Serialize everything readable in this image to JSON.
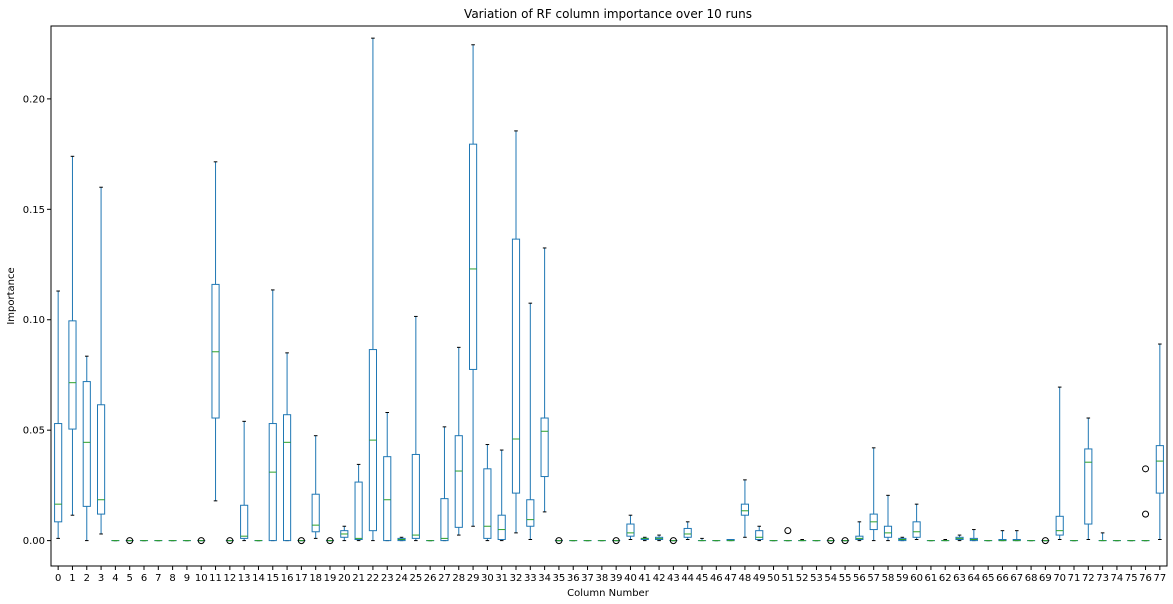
{
  "chart_data": {
    "type": "box",
    "title": "Variation of RF column importance over 10 runs",
    "xlabel": "Column Number",
    "ylabel": "Importance",
    "ylim": [
      -0.0115,
      0.233
    ],
    "yticks": [
      0.0,
      0.05,
      0.1,
      0.15,
      0.2
    ],
    "ytick_labels": [
      "0.00",
      "0.05",
      "0.10",
      "0.15",
      "0.20"
    ],
    "grid": false,
    "colors": {
      "box": "#1f77b4",
      "median": "#2ca02c",
      "outlier": "#000000"
    },
    "categories": [
      "0",
      "1",
      "2",
      "3",
      "4",
      "5",
      "6",
      "7",
      "8",
      "9",
      "10",
      "11",
      "12",
      "13",
      "14",
      "15",
      "16",
      "17",
      "18",
      "19",
      "20",
      "21",
      "22",
      "23",
      "24",
      "25",
      "26",
      "27",
      "28",
      "29",
      "30",
      "31",
      "32",
      "33",
      "34",
      "35",
      "36",
      "37",
      "38",
      "39",
      "40",
      "41",
      "42",
      "43",
      "44",
      "45",
      "46",
      "47",
      "48",
      "49",
      "50",
      "51",
      "52",
      "53",
      "54",
      "55",
      "56",
      "57",
      "58",
      "59",
      "60",
      "61",
      "62",
      "63",
      "64",
      "65",
      "66",
      "67",
      "68",
      "69",
      "70",
      "71",
      "72",
      "73",
      "74",
      "75",
      "76",
      "77"
    ],
    "boxes": [
      {
        "min": 0.001,
        "q1": 0.0085,
        "med": 0.0165,
        "q3": 0.053,
        "max": 0.113,
        "fliers": []
      },
      {
        "min": 0.0115,
        "q1": 0.0505,
        "med": 0.0715,
        "q3": 0.0995,
        "max": 0.174,
        "fliers": []
      },
      {
        "min": 0.0,
        "q1": 0.0155,
        "med": 0.0445,
        "q3": 0.072,
        "max": 0.0835,
        "fliers": []
      },
      {
        "min": 0.003,
        "q1": 0.012,
        "med": 0.0185,
        "q3": 0.0615,
        "max": 0.16,
        "fliers": []
      },
      {
        "min": 0.0,
        "q1": 0.0,
        "med": 0.0,
        "q3": 0.0,
        "max": 0.0,
        "fliers": []
      },
      {
        "min": 0.0,
        "q1": 0.0,
        "med": 0.0,
        "q3": 0.0,
        "max": 0.0,
        "fliers": [
          0.0
        ]
      },
      {
        "min": 0.0,
        "q1": 0.0,
        "med": 0.0,
        "q3": 0.0,
        "max": 0.0,
        "fliers": []
      },
      {
        "min": 0.0,
        "q1": 0.0,
        "med": 0.0,
        "q3": 0.0,
        "max": 0.0,
        "fliers": []
      },
      {
        "min": 0.0,
        "q1": 0.0,
        "med": 0.0,
        "q3": 0.0,
        "max": 0.0,
        "fliers": []
      },
      {
        "min": 0.0,
        "q1": 0.0,
        "med": 0.0,
        "q3": 0.0,
        "max": 0.0,
        "fliers": []
      },
      {
        "min": 0.0,
        "q1": 0.0,
        "med": 0.0,
        "q3": 0.0,
        "max": 0.0,
        "fliers": [
          0.0
        ]
      },
      {
        "min": 0.018,
        "q1": 0.0555,
        "med": 0.0855,
        "q3": 0.116,
        "max": 0.1715,
        "fliers": []
      },
      {
        "min": 0.0,
        "q1": 0.0,
        "med": 0.0,
        "q3": 0.0,
        "max": 0.0,
        "fliers": [
          0.0
        ]
      },
      {
        "min": 0.0,
        "q1": 0.001,
        "med": 0.002,
        "q3": 0.016,
        "max": 0.054,
        "fliers": []
      },
      {
        "min": 0.0,
        "q1": 0.0,
        "med": 0.0,
        "q3": 0.0,
        "max": 0.0,
        "fliers": []
      },
      {
        "min": 0.0,
        "q1": 0.0,
        "med": 0.031,
        "q3": 0.053,
        "max": 0.1135,
        "fliers": []
      },
      {
        "min": 0.0,
        "q1": 0.0,
        "med": 0.0445,
        "q3": 0.057,
        "max": 0.085,
        "fliers": []
      },
      {
        "min": 0.0,
        "q1": 0.0,
        "med": 0.0,
        "q3": 0.0,
        "max": 0.0,
        "fliers": [
          0.0
        ]
      },
      {
        "min": 0.001,
        "q1": 0.004,
        "med": 0.007,
        "q3": 0.021,
        "max": 0.0475,
        "fliers": []
      },
      {
        "min": 0.0,
        "q1": 0.0,
        "med": 0.0,
        "q3": 0.0,
        "max": 0.0,
        "fliers": [
          0.0
        ]
      },
      {
        "min": 0.0,
        "q1": 0.0015,
        "med": 0.003,
        "q3": 0.0045,
        "max": 0.0065,
        "fliers": []
      },
      {
        "min": 0.0,
        "q1": 0.0005,
        "med": 0.001,
        "q3": 0.0265,
        "max": 0.0345,
        "fliers": []
      },
      {
        "min": 0.0,
        "q1": 0.0045,
        "med": 0.0455,
        "q3": 0.0865,
        "max": 0.2275,
        "fliers": []
      },
      {
        "min": 0.0,
        "q1": 0.0,
        "med": 0.0185,
        "q3": 0.038,
        "max": 0.058,
        "fliers": []
      },
      {
        "min": 0.0,
        "q1": 0.0,
        "med": 0.0005,
        "q3": 0.001,
        "max": 0.0015,
        "fliers": []
      },
      {
        "min": 0.0,
        "q1": 0.001,
        "med": 0.0025,
        "q3": 0.039,
        "max": 0.1015,
        "fliers": []
      },
      {
        "min": 0.0,
        "q1": 0.0,
        "med": 0.0,
        "q3": 0.0,
        "max": 0.0,
        "fliers": []
      },
      {
        "min": 0.0,
        "q1": 0.0,
        "med": 0.001,
        "q3": 0.019,
        "max": 0.0515,
        "fliers": []
      },
      {
        "min": 0.0025,
        "q1": 0.006,
        "med": 0.0315,
        "q3": 0.0475,
        "max": 0.0875,
        "fliers": []
      },
      {
        "min": 0.0065,
        "q1": 0.0775,
        "med": 0.123,
        "q3": 0.1795,
        "max": 0.2245,
        "fliers": []
      },
      {
        "min": 0.0,
        "q1": 0.001,
        "med": 0.0065,
        "q3": 0.0325,
        "max": 0.0435,
        "fliers": []
      },
      {
        "min": 0.0,
        "q1": 0.0005,
        "med": 0.005,
        "q3": 0.0115,
        "max": 0.041,
        "fliers": []
      },
      {
        "min": 0.0035,
        "q1": 0.0215,
        "med": 0.046,
        "q3": 0.1365,
        "max": 0.1855,
        "fliers": []
      },
      {
        "min": 0.0005,
        "q1": 0.0065,
        "med": 0.0095,
        "q3": 0.0185,
        "max": 0.1075,
        "fliers": []
      },
      {
        "min": 0.013,
        "q1": 0.029,
        "med": 0.0495,
        "q3": 0.0555,
        "max": 0.1325,
        "fliers": []
      },
      {
        "min": 0.0,
        "q1": 0.0,
        "med": 0.0,
        "q3": 0.0,
        "max": 0.0,
        "fliers": [
          0.0
        ]
      },
      {
        "min": 0.0,
        "q1": 0.0,
        "med": 0.0,
        "q3": 0.0,
        "max": 0.0,
        "fliers": []
      },
      {
        "min": 0.0,
        "q1": 0.0,
        "med": 0.0,
        "q3": 0.0,
        "max": 0.0,
        "fliers": []
      },
      {
        "min": 0.0,
        "q1": 0.0,
        "med": 0.0,
        "q3": 0.0,
        "max": 0.0,
        "fliers": []
      },
      {
        "min": 0.0,
        "q1": 0.0,
        "med": 0.0,
        "q3": 0.0,
        "max": 0.0,
        "fliers": [
          0.0
        ]
      },
      {
        "min": 0.0005,
        "q1": 0.002,
        "med": 0.0035,
        "q3": 0.0075,
        "max": 0.0115,
        "fliers": []
      },
      {
        "min": 0.0,
        "q1": 0.0005,
        "med": 0.001,
        "q3": 0.001,
        "max": 0.0015,
        "fliers": []
      },
      {
        "min": 0.0,
        "q1": 0.0005,
        "med": 0.001,
        "q3": 0.0015,
        "max": 0.0025,
        "fliers": []
      },
      {
        "min": 0.0,
        "q1": 0.0,
        "med": 0.0,
        "q3": 0.0,
        "max": 0.0,
        "fliers": [
          0.0
        ]
      },
      {
        "min": 0.0005,
        "q1": 0.0015,
        "med": 0.003,
        "q3": 0.0055,
        "max": 0.0085,
        "fliers": []
      },
      {
        "min": 0.0,
        "q1": 0.0,
        "med": 0.0,
        "q3": 0.0,
        "max": 0.001,
        "fliers": []
      },
      {
        "min": 0.0,
        "q1": 0.0,
        "med": 0.0,
        "q3": 0.0,
        "max": 0.0,
        "fliers": []
      },
      {
        "min": 0.0,
        "q1": 0.0,
        "med": 0.0,
        "q3": 0.0005,
        "max": 0.0005,
        "fliers": []
      },
      {
        "min": 0.0015,
        "q1": 0.0115,
        "med": 0.0135,
        "q3": 0.0165,
        "max": 0.0275,
        "fliers": []
      },
      {
        "min": 0.0,
        "q1": 0.0005,
        "med": 0.0015,
        "q3": 0.0045,
        "max": 0.0065,
        "fliers": []
      },
      {
        "min": 0.0,
        "q1": 0.0,
        "med": 0.0,
        "q3": 0.0,
        "max": 0.0,
        "fliers": []
      },
      {
        "min": 0.0,
        "q1": 0.0,
        "med": 0.0,
        "q3": 0.0,
        "max": 0.0,
        "fliers": [
          0.0045
        ]
      },
      {
        "min": 0.0,
        "q1": 0.0,
        "med": 0.0,
        "q3": 0.0,
        "max": 0.0005,
        "fliers": []
      },
      {
        "min": 0.0,
        "q1": 0.0,
        "med": 0.0,
        "q3": 0.0,
        "max": 0.0,
        "fliers": []
      },
      {
        "min": 0.0,
        "q1": 0.0,
        "med": 0.0,
        "q3": 0.0,
        "max": 0.0,
        "fliers": [
          0.0
        ]
      },
      {
        "min": 0.0,
        "q1": 0.0,
        "med": 0.0,
        "q3": 0.0,
        "max": 0.0,
        "fliers": [
          0.0
        ]
      },
      {
        "min": 0.0,
        "q1": 0.0005,
        "med": 0.001,
        "q3": 0.002,
        "max": 0.0085,
        "fliers": []
      },
      {
        "min": 0.0,
        "q1": 0.005,
        "med": 0.0085,
        "q3": 0.012,
        "max": 0.042,
        "fliers": []
      },
      {
        "min": 0.0,
        "q1": 0.0015,
        "med": 0.0035,
        "q3": 0.0065,
        "max": 0.0205,
        "fliers": []
      },
      {
        "min": 0.0,
        "q1": 0.0,
        "med": 0.0005,
        "q3": 0.001,
        "max": 0.0015,
        "fliers": []
      },
      {
        "min": 0.0005,
        "q1": 0.0015,
        "med": 0.004,
        "q3": 0.0085,
        "max": 0.0165,
        "fliers": []
      },
      {
        "min": 0.0,
        "q1": 0.0,
        "med": 0.0,
        "q3": 0.0,
        "max": 0.0,
        "fliers": []
      },
      {
        "min": 0.0,
        "q1": 0.0,
        "med": 0.0,
        "q3": 0.0,
        "max": 0.0005,
        "fliers": []
      },
      {
        "min": 0.0,
        "q1": 0.0005,
        "med": 0.001,
        "q3": 0.0015,
        "max": 0.0025,
        "fliers": []
      },
      {
        "min": 0.0,
        "q1": 0.0,
        "med": 0.0005,
        "q3": 0.001,
        "max": 0.005,
        "fliers": []
      },
      {
        "min": 0.0,
        "q1": 0.0,
        "med": 0.0,
        "q3": 0.0,
        "max": 0.0,
        "fliers": []
      },
      {
        "min": 0.0,
        "q1": 0.0,
        "med": 0.0,
        "q3": 0.0005,
        "max": 0.0045,
        "fliers": []
      },
      {
        "min": 0.0,
        "q1": 0.0,
        "med": 0.0,
        "q3": 0.0005,
        "max": 0.0045,
        "fliers": []
      },
      {
        "min": 0.0,
        "q1": 0.0,
        "med": 0.0,
        "q3": 0.0,
        "max": 0.0,
        "fliers": []
      },
      {
        "min": 0.0,
        "q1": 0.0,
        "med": 0.0,
        "q3": 0.0,
        "max": 0.0,
        "fliers": [
          0.0
        ]
      },
      {
        "min": 0.0005,
        "q1": 0.0025,
        "med": 0.0045,
        "q3": 0.011,
        "max": 0.0695,
        "fliers": []
      },
      {
        "min": 0.0,
        "q1": 0.0,
        "med": 0.0,
        "q3": 0.0,
        "max": 0.0,
        "fliers": []
      },
      {
        "min": 0.0005,
        "q1": 0.0075,
        "med": 0.0355,
        "q3": 0.0415,
        "max": 0.0555,
        "fliers": []
      },
      {
        "min": 0.0,
        "q1": 0.0,
        "med": 0.0,
        "q3": 0.0,
        "max": 0.0035,
        "fliers": []
      },
      {
        "min": 0.0,
        "q1": 0.0,
        "med": 0.0,
        "q3": 0.0,
        "max": 0.0,
        "fliers": []
      },
      {
        "min": 0.0,
        "q1": 0.0,
        "med": 0.0,
        "q3": 0.0,
        "max": 0.0,
        "fliers": []
      },
      {
        "min": 0.0,
        "q1": 0.0,
        "med": 0.0,
        "q3": 0.0,
        "max": 0.0,
        "fliers": [
          0.012,
          0.0325
        ]
      },
      {
        "min": 0.0005,
        "q1": 0.0215,
        "med": 0.036,
        "q3": 0.043,
        "max": 0.089,
        "fliers": []
      }
    ]
  }
}
